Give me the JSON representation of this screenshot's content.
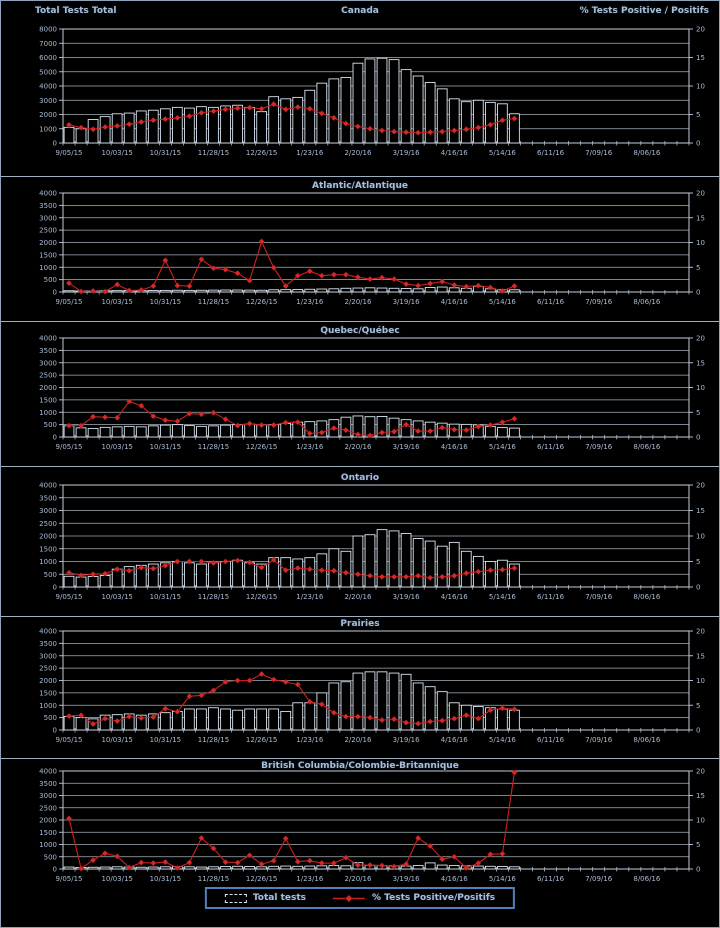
{
  "header": {
    "left_axis_title": "Total Tests Total",
    "right_axis_title": "% Tests Positive / Positifs"
  },
  "legend": {
    "bar_label": "Total tests",
    "line_label": "% Tests Positive/Positifs"
  },
  "colors": {
    "background": "#000000",
    "text": "#a9bdd6",
    "grid": "#c2cedb",
    "bar_outline": "#d9e4ef",
    "bar_fill": "#000000",
    "line": "#cf2020",
    "marker": "#d42a2a",
    "legend_border": "#4f81bd",
    "panel_border": "#9db0c4"
  },
  "chart_data": {
    "type": "bar+line",
    "weeks_total": 52,
    "x_tick_labels": [
      "9/05/15",
      "10/03/15",
      "10/31/15",
      "11/28/15",
      "12/26/15",
      "1/23/16",
      "2/20/16",
      "3/19/16",
      "4/16/16",
      "5/14/16",
      "6/11/16",
      "7/09/16",
      "8/06/16"
    ],
    "legend_position": "bottom",
    "grid": true,
    "panels": [
      {
        "title": "Canada",
        "y_left": {
          "min": 0,
          "max": 8000,
          "step": 1000
        },
        "y_right": {
          "min": 0,
          "max": 20,
          "step": 5
        },
        "series": [
          {
            "name": "Total tests",
            "type": "bar",
            "axis": "left",
            "values": [
              1100,
              1000,
              1650,
              1850,
              2050,
              2100,
              2250,
              2300,
              2400,
              2500,
              2450,
              2550,
              2500,
              2600,
              2650,
              2500,
              2200,
              3250,
              3100,
              3200,
              3700,
              4200,
              4500,
              4600,
              5600,
              5900,
              5950,
              5850,
              5150,
              4700,
              4250,
              3800,
              3100,
              2900,
              3000,
              2850,
              2750,
              2050
            ]
          },
          {
            "name": "% Tests Positive/Positifs",
            "type": "line",
            "axis": "right",
            "values": [
              3.2,
              2.7,
              2.4,
              2.8,
              3.0,
              3.3,
              3.7,
              4.0,
              4.2,
              4.4,
              4.7,
              5.3,
              5.6,
              5.9,
              6.1,
              6.2,
              6.0,
              6.8,
              5.9,
              6.3,
              6.0,
              5.2,
              4.4,
              3.4,
              2.9,
              2.5,
              2.2,
              2.0,
              1.9,
              1.8,
              1.9,
              2.0,
              2.2,
              2.4,
              2.7,
              3.2,
              4.0,
              4.3
            ]
          }
        ]
      },
      {
        "title": "Atlantic/Atlantique",
        "y_left": {
          "min": 0,
          "max": 4000,
          "step": 500
        },
        "y_right": {
          "min": 0,
          "max": 20,
          "step": 5
        },
        "series": [
          {
            "name": "Total tests",
            "type": "bar",
            "axis": "left",
            "values": [
              50,
              40,
              45,
              50,
              55,
              60,
              55,
              60,
              65,
              70,
              65,
              70,
              75,
              80,
              80,
              75,
              70,
              90,
              95,
              100,
              110,
              120,
              130,
              150,
              160,
              170,
              160,
              150,
              140,
              130,
              180,
              200,
              170,
              150,
              230,
              130,
              100,
              90
            ]
          },
          {
            "name": "% Tests Positive/Positifs",
            "type": "line",
            "axis": "right",
            "values": [
              1.8,
              0.1,
              0.2,
              0.1,
              1.5,
              0.3,
              0.4,
              1.2,
              6.4,
              1.3,
              1.2,
              6.6,
              4.8,
              4.5,
              3.8,
              2.3,
              10.2,
              4.9,
              1.2,
              3.3,
              4.2,
              3.3,
              3.5,
              3.5,
              3.0,
              2.6,
              2.9,
              2.6,
              1.6,
              1.3,
              1.7,
              2.1,
              1.4,
              1.1,
              1.3,
              0.9,
              0.2,
              1.2
            ]
          }
        ]
      },
      {
        "title": "Quebec/Québec",
        "y_left": {
          "min": 0,
          "max": 4000,
          "step": 500
        },
        "y_right": {
          "min": 0,
          "max": 20,
          "step": 5
        },
        "series": [
          {
            "name": "Total tests",
            "type": "bar",
            "axis": "left",
            "values": [
              450,
              370,
              340,
              390,
              410,
              430,
              410,
              450,
              480,
              500,
              460,
              430,
              450,
              480,
              500,
              520,
              490,
              500,
              550,
              600,
              620,
              650,
              700,
              800,
              850,
              820,
              830,
              760,
              700,
              650,
              600,
              560,
              520,
              510,
              490,
              430,
              380,
              360
            ]
          },
          {
            "name": "% Tests Positive/Positifs",
            "type": "line",
            "axis": "right",
            "values": [
              2.3,
              2.3,
              4.1,
              4.0,
              3.9,
              7.2,
              6.3,
              4.2,
              3.4,
              3.2,
              4.7,
              4.6,
              4.9,
              3.6,
              2.3,
              2.7,
              2.4,
              2.4,
              2.9,
              3.0,
              0.7,
              0.9,
              1.8,
              1.4,
              0.5,
              0.3,
              0.9,
              1.1,
              2.5,
              1.2,
              1.2,
              1.9,
              1.5,
              1.4,
              2.1,
              2.4,
              3.0,
              3.7
            ]
          }
        ]
      },
      {
        "title": "Ontario",
        "y_left": {
          "min": 0,
          "max": 4000,
          "step": 500
        },
        "y_right": {
          "min": 0,
          "max": 20,
          "step": 5
        },
        "series": [
          {
            "name": "Total tests",
            "type": "bar",
            "axis": "left",
            "values": [
              420,
              390,
              410,
              450,
              700,
              800,
              850,
              900,
              950,
              1000,
              950,
              900,
              950,
              1000,
              1050,
              950,
              900,
              1150,
              1150,
              1100,
              1150,
              1300,
              1500,
              1400,
              2000,
              2050,
              2250,
              2200,
              2100,
              1900,
              1800,
              1600,
              1750,
              1400,
              1200,
              1000,
              1050,
              900
            ]
          },
          {
            "name": "% Tests Positive/Positifs",
            "type": "line",
            "axis": "right",
            "values": [
              2.8,
              2.3,
              2.5,
              2.6,
              3.5,
              3.2,
              3.8,
              3.6,
              4.2,
              5.0,
              5.0,
              5.0,
              4.7,
              5.0,
              5.2,
              4.8,
              3.8,
              5.3,
              3.3,
              3.7,
              3.5,
              3.3,
              3.2,
              2.8,
              2.5,
              2.2,
              2.0,
              2.0,
              2.0,
              2.2,
              1.8,
              2.0,
              2.2,
              2.7,
              3.0,
              3.3,
              3.4,
              3.7
            ]
          }
        ]
      },
      {
        "title": "Prairies",
        "y_left": {
          "min": 0,
          "max": 4000,
          "step": 500
        },
        "y_right": {
          "min": 0,
          "max": 20,
          "step": 5
        },
        "series": [
          {
            "name": "Total tests",
            "type": "bar",
            "axis": "left",
            "values": [
              550,
              500,
              450,
              600,
              620,
              650,
              600,
              650,
              700,
              750,
              850,
              850,
              900,
              850,
              800,
              850,
              850,
              850,
              750,
              1100,
              1100,
              1500,
              1900,
              1950,
              2300,
              2350,
              2350,
              2300,
              2250,
              1900,
              1750,
              1550,
              1100,
              1000,
              950,
              900,
              850,
              800
            ]
          },
          {
            "name": "% Tests Positive/Positifs",
            "type": "line",
            "axis": "right",
            "values": [
              2.8,
              3.0,
              1.2,
              2.3,
              1.8,
              2.7,
              2.4,
              2.6,
              4.3,
              3.7,
              6.8,
              7.0,
              8.0,
              9.7,
              10.0,
              10.0,
              11.3,
              10.2,
              9.7,
              9.2,
              5.7,
              5.2,
              3.5,
              2.7,
              2.7,
              2.5,
              2.0,
              2.2,
              1.5,
              1.3,
              1.7,
              1.9,
              2.3,
              3.0,
              2.3,
              4.0,
              4.4,
              4.2
            ]
          }
        ]
      },
      {
        "title": "British Columbia/Colombie-Britannique",
        "y_left": {
          "min": 0,
          "max": 4000,
          "step": 500
        },
        "y_right": {
          "min": 0,
          "max": 20,
          "step": 5
        },
        "series": [
          {
            "name": "Total tests",
            "type": "bar",
            "axis": "left",
            "values": [
              80,
              60,
              70,
              80,
              90,
              80,
              70,
              80,
              90,
              100,
              90,
              80,
              90,
              100,
              110,
              100,
              90,
              110,
              120,
              110,
              120,
              130,
              140,
              130,
              260,
              150,
              140,
              130,
              120,
              140,
              250,
              160,
              140,
              130,
              120,
              110,
              100,
              90
            ]
          },
          {
            "name": "% Tests Positive/Positifs",
            "type": "line",
            "axis": "right",
            "values": [
              10.3,
              0.1,
              1.8,
              3.2,
              2.6,
              0.3,
              1.3,
              1.2,
              1.4,
              0.2,
              1.3,
              6.3,
              4.2,
              1.4,
              1.3,
              2.8,
              1.0,
              1.7,
              6.2,
              1.5,
              1.7,
              1.2,
              1.2,
              2.3,
              0.8,
              0.8,
              0.7,
              0.5,
              1.0,
              6.3,
              4.7,
              2.0,
              2.5,
              0.2,
              1.2,
              3.0,
              3.1,
              19.7
            ]
          }
        ]
      }
    ]
  }
}
